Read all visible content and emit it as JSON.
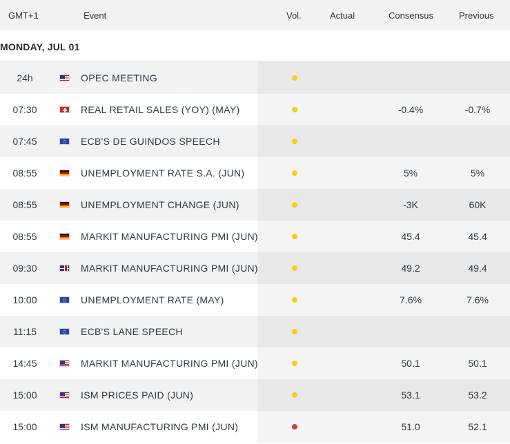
{
  "header": {
    "timezone": "GMT+1",
    "event": "Event",
    "vol": "Vol.",
    "actual": "Actual",
    "consensus": "Consensus",
    "previous": "Previous"
  },
  "date_label": "MONDAY, JUL 01",
  "colors": {
    "low_impact": "#f5cf1f",
    "high_impact": "#c94545"
  },
  "events": [
    {
      "time": "24h",
      "flag": "us-flag-icon",
      "event": "OPEC MEETING",
      "impact": "low",
      "actual": "",
      "consensus": "",
      "previous": ""
    },
    {
      "time": "07:30",
      "flag": "switzerland-flag-icon",
      "event": "REAL RETAIL SALES (YOY) (MAY)",
      "impact": "low",
      "actual": "",
      "consensus": "-0.4%",
      "previous": "-0.7%"
    },
    {
      "time": "07:45",
      "flag": "eu-flag-icon",
      "event": "ECB'S DE GUINDOS SPEECH",
      "impact": "low",
      "actual": "",
      "consensus": "",
      "previous": ""
    },
    {
      "time": "08:55",
      "flag": "germany-flag-icon",
      "event": "UNEMPLOYMENT RATE S.A. (JUN)",
      "impact": "low",
      "actual": "",
      "consensus": "5%",
      "previous": "5%"
    },
    {
      "time": "08:55",
      "flag": "germany-flag-icon",
      "event": "UNEMPLOYMENT CHANGE (JUN)",
      "impact": "low",
      "actual": "",
      "consensus": "-3K",
      "previous": "60K"
    },
    {
      "time": "08:55",
      "flag": "germany-flag-icon",
      "event": "MARKIT MANUFACTURING PMI (JUN)",
      "impact": "low",
      "actual": "",
      "consensus": "45.4",
      "previous": "45.4"
    },
    {
      "time": "09:30",
      "flag": "uk-flag-icon",
      "event": "MARKIT MANUFACTURING PMI (JUN)",
      "impact": "low",
      "actual": "",
      "consensus": "49.2",
      "previous": "49.4"
    },
    {
      "time": "10:00",
      "flag": "eu-flag-icon",
      "event": "UNEMPLOYMENT RATE (MAY)",
      "impact": "low",
      "actual": "",
      "consensus": "7.6%",
      "previous": "7.6%"
    },
    {
      "time": "11:15",
      "flag": "eu-flag-icon",
      "event": "ECB'S LANE SPEECH",
      "impact": "low",
      "actual": "",
      "consensus": "",
      "previous": ""
    },
    {
      "time": "14:45",
      "flag": "us-flag-icon",
      "event": "MARKIT MANUFACTURING PMI (JUN)",
      "impact": "low",
      "actual": "",
      "consensus": "50.1",
      "previous": "50.1"
    },
    {
      "time": "15:00",
      "flag": "us-flag-icon",
      "event": "ISM PRICES PAID (JUN)",
      "impact": "low",
      "actual": "",
      "consensus": "53.1",
      "previous": "53.2"
    },
    {
      "time": "15:00",
      "flag": "us-flag-icon",
      "event": "ISM MANUFACTURING PMI (JUN)",
      "impact": "high",
      "actual": "",
      "consensus": "51.0",
      "previous": "52.1"
    }
  ]
}
